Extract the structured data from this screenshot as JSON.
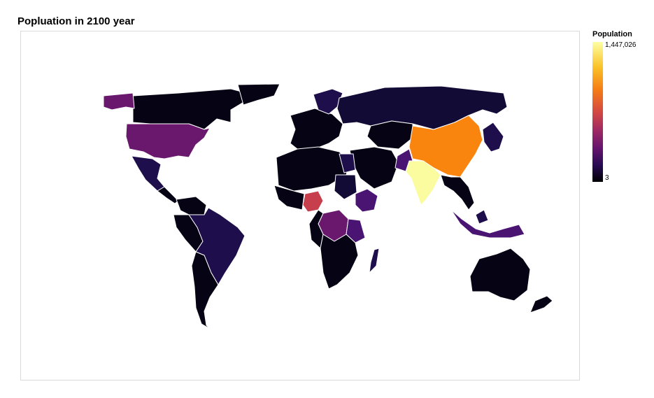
{
  "title": "Popluation in 2100 year",
  "legend": {
    "title": "Population",
    "max_label": "1,447,026",
    "min_label": "3",
    "colorscale": [
      "#000004",
      "#280b53",
      "#65156e",
      "#9f2a63",
      "#d44842",
      "#f57d15",
      "#fac228",
      "#fcffa4"
    ]
  },
  "colors": {
    "darkest": "#050314",
    "dark": "#120b36",
    "indigo": "#1e0f4c",
    "purple": "#4a1472",
    "magenta": "#6a186e",
    "red": "#c73e4c",
    "orange": "#f9850f",
    "yellow": "#fbfca0"
  }
}
